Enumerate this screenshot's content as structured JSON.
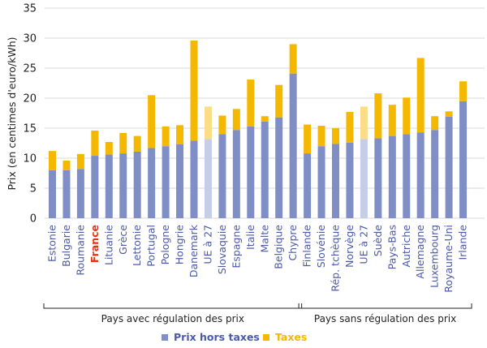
{
  "chart_data": {
    "type": "bar",
    "stacked": true,
    "title": "",
    "xlabel": "",
    "ylabel": "Prix (en centimes d'euro/kWh)",
    "ylim": [
      0,
      35
    ],
    "yticks": [
      0,
      5,
      10,
      15,
      20,
      25,
      30,
      35
    ],
    "grid": true,
    "legend_position": "bottom",
    "categories": [
      "Estonie",
      "Bulgarie",
      "Roumanie",
      "France",
      "Lituanie",
      "Grèce",
      "Lettonie",
      "Portugal",
      "Pologne",
      "Hongrie",
      "Danemark",
      "UE à 27",
      "Slovaquie",
      "Espagne",
      "Italie",
      "Malte",
      "Belgique",
      "Chypre",
      "Finlande",
      "Slovénie",
      "Rép. tchèque",
      "Norvège",
      "UE à 27",
      "Suède",
      "Pays-Bas",
      "Autriche",
      "Allemagne",
      "Luxembourg",
      "Royaume-Uni",
      "Irlande"
    ],
    "highlight_category": "France",
    "series": [
      {
        "name": "Prix hors taxes",
        "color": "#7f8fc6",
        "highlight_color": "#c6cde6",
        "values": [
          8.0,
          8.0,
          8.2,
          10.4,
          10.6,
          10.8,
          11.1,
          11.7,
          12.0,
          12.3,
          12.9,
          13.2,
          14.0,
          14.7,
          15.3,
          16.1,
          16.8,
          24.1,
          10.8,
          12.0,
          12.4,
          12.6,
          13.2,
          13.3,
          13.7,
          14.0,
          14.3,
          14.7,
          16.9,
          19.5
        ]
      },
      {
        "name": "Taxes",
        "color": "#f5b800",
        "highlight_color": "#fbdc87",
        "values": [
          3.2,
          1.6,
          2.5,
          4.2,
          2.1,
          3.4,
          2.6,
          8.8,
          3.3,
          3.2,
          16.7,
          5.4,
          3.1,
          3.5,
          7.8,
          0.9,
          5.4,
          4.9,
          4.8,
          3.4,
          2.6,
          5.1,
          5.4,
          7.5,
          5.2,
          6.1,
          12.4,
          2.3,
          0.9,
          3.3
        ]
      }
    ],
    "highlighted_bars": [
      11,
      22
    ],
    "groups": [
      {
        "label": "Pays avec régulation des prix",
        "start": 0,
        "end": 17
      },
      {
        "label": "Pays sans régulation des prix",
        "start": 18,
        "end": 29
      }
    ]
  }
}
